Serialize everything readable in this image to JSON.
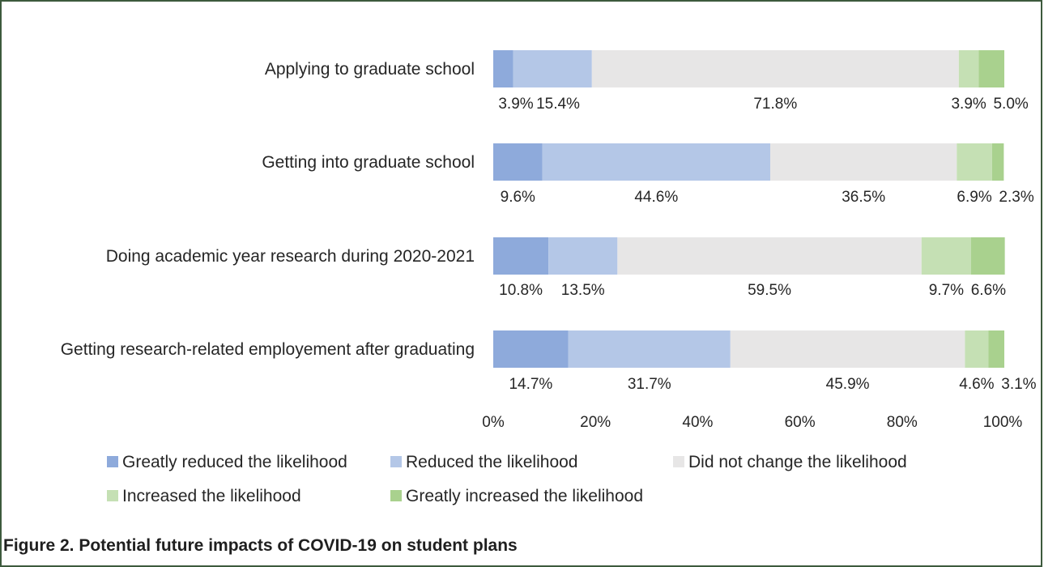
{
  "chart_data": {
    "type": "bar",
    "orientation": "horizontal",
    "stacked": true,
    "categories": [
      "Applying to graduate school",
      "Getting into graduate school",
      "Doing academic year research during 2020-2021",
      "Getting research-related employement after graduating"
    ],
    "series": [
      {
        "name": "Greatly reduced the likelihood",
        "color": "#8eaadb",
        "values": [
          3.9,
          9.6,
          10.8,
          14.7
        ],
        "labels": [
          "3.9%",
          "9.6%",
          "10.8%",
          "14.7%"
        ]
      },
      {
        "name": "Reduced the likelihood",
        "color": "#b4c7e7",
        "values": [
          15.4,
          44.6,
          13.5,
          31.7
        ],
        "labels": [
          "15.4%",
          "44.6%",
          "13.5%",
          "31.7%"
        ]
      },
      {
        "name": "Did not change the likelihood",
        "color": "#e7e6e6",
        "values": [
          71.8,
          36.5,
          59.5,
          45.9
        ],
        "labels": [
          "71.8%",
          "36.5%",
          "59.5%",
          "45.9%"
        ]
      },
      {
        "name": "Increased the likelihood",
        "color": "#c5e0b4",
        "values": [
          3.9,
          6.9,
          9.7,
          4.6
        ],
        "labels": [
          "3.9%",
          "6.9%",
          "9.7%",
          "4.6%"
        ]
      },
      {
        "name": "Greatly increased the likelihood",
        "color": "#a9d18e",
        "values": [
          5.0,
          2.3,
          6.6,
          3.1
        ],
        "labels": [
          "5.0%",
          "2.3%",
          "6.6%",
          "3.1%"
        ]
      }
    ],
    "xlim": [
      0,
      100
    ],
    "x_ticks": [
      "0%",
      "20%",
      "40%",
      "60%",
      "80%",
      "100%"
    ],
    "grid": false,
    "legend_position": "bottom",
    "caption": "Figure 2. Potential future impacts of COVID-19 on student plans"
  }
}
